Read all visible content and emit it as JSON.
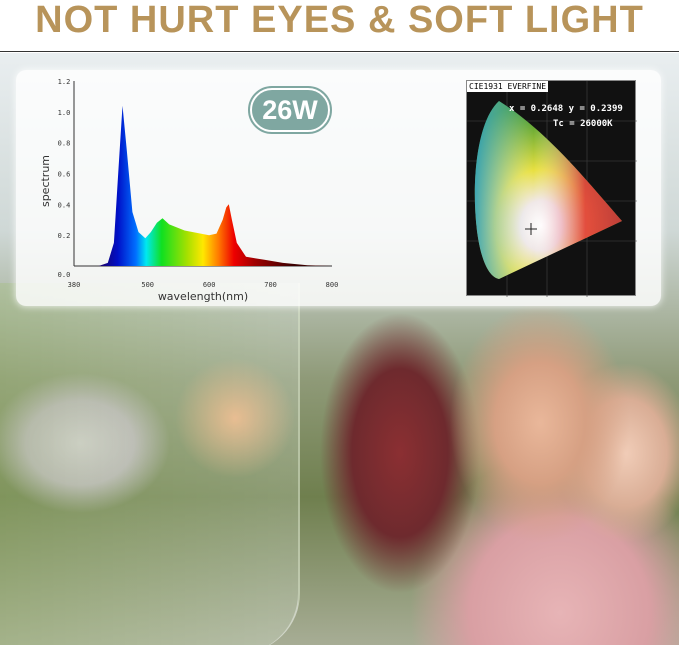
{
  "headline": "NOT HURT EYES & SOFT LIGHT",
  "colors": {
    "headline": "#b8945a",
    "badge": "#7fa7a1"
  },
  "badge": "26W",
  "cie": {
    "title": "CIE1931 EVERFINE",
    "coords": "x = 0.2648 y = 0.2399",
    "tc": "Tc = 26000K"
  },
  "chart_data": {
    "type": "area",
    "xlabel": "wavelength(nm)",
    "ylabel": "spectrum",
    "xlim": [
      380,
      800
    ],
    "ylim": [
      0,
      1.2
    ],
    "xticks": [
      "380",
      "500",
      "600",
      "700",
      "800"
    ],
    "yticks": [
      "0.0",
      "0.2",
      "0.4",
      "0.6",
      "0.8",
      "1.0",
      "1.2"
    ],
    "x": [
      380,
      420,
      435,
      445,
      452,
      459,
      466,
      475,
      485,
      496,
      505,
      515,
      524,
      535,
      560,
      600,
      612,
      622,
      628,
      632,
      637,
      645,
      660,
      690,
      720,
      760,
      800
    ],
    "values": [
      0,
      0,
      0.02,
      0.15,
      0.6,
      1.04,
      0.75,
      0.35,
      0.22,
      0.18,
      0.22,
      0.28,
      0.31,
      0.27,
      0.23,
      0.2,
      0.21,
      0.3,
      0.38,
      0.4,
      0.3,
      0.15,
      0.06,
      0.04,
      0.02,
      0.005,
      0
    ]
  }
}
